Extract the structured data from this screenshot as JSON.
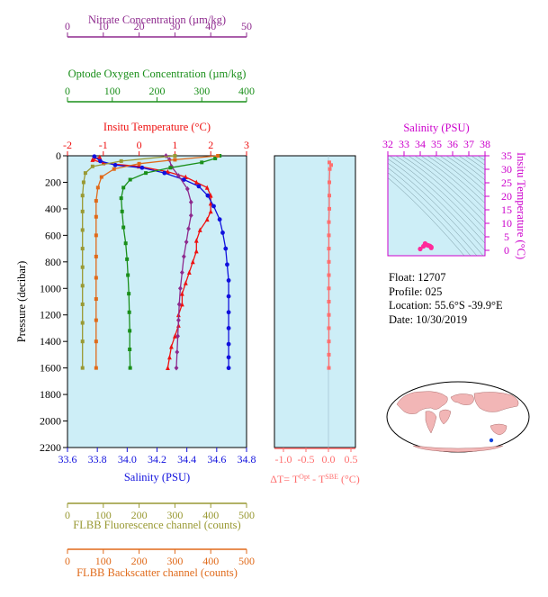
{
  "colors": {
    "panel_bg": "#cdeef7",
    "nitrate": "#8e2a8e",
    "oxygen": "#1a8f1a",
    "temperature": "#ee1111",
    "salinity": "#1111dd",
    "fluorescence": "#999933",
    "backscatter": "#e06a1a",
    "delta_t": "#ff6f6f",
    "ts_axis": "#cc00cc",
    "map_land": "#f2b6b6",
    "map_ocean": "#ffffff",
    "float_marker": "#1144dd"
  },
  "chart_data": [
    {
      "type": "line",
      "title": "",
      "ylabel": "Pressure (decibar)",
      "yticks": [
        "0",
        "200",
        "400",
        "600",
        "800",
        "1000",
        "1200",
        "1400",
        "1600",
        "1800",
        "2000",
        "2200"
      ],
      "ylim": [
        2200,
        0
      ],
      "axes": [
        {
          "key": "nitrate",
          "label": "Nitrate Concentration (µm/kg)",
          "range": [
            0,
            50
          ],
          "ticks": [
            "0",
            "10",
            "20",
            "30",
            "40",
            "50"
          ]
        },
        {
          "key": "oxygen",
          "label": "Optode Oxygen Concentration (µm/kg)",
          "range": [
            0,
            400
          ],
          "ticks": [
            "0",
            "100",
            "200",
            "300",
            "400"
          ]
        },
        {
          "key": "temperature",
          "label": "Insitu Temperature (°C)",
          "range": [
            -2,
            3
          ],
          "ticks": [
            "-2",
            "-1",
            "0",
            "1",
            "2",
            "3"
          ]
        },
        {
          "key": "salinity",
          "label": "Salinity (PSU)",
          "range": [
            33.6,
            34.8
          ],
          "ticks": [
            "33.6",
            "33.8",
            "34.0",
            "34.2",
            "34.4",
            "34.6",
            "34.8"
          ]
        },
        {
          "key": "fluorescence",
          "label": "FLBB Fluorescence channel (counts)",
          "range": [
            0,
            500
          ],
          "ticks": [
            "0",
            "100",
            "200",
            "300",
            "400",
            "500"
          ]
        },
        {
          "key": "backscatter",
          "label": "FLBB Backscatter channel (counts)",
          "range": [
            0,
            500
          ],
          "ticks": [
            "0",
            "100",
            "200",
            "300",
            "400",
            "500"
          ]
        }
      ],
      "series": [
        {
          "key": "temperature",
          "marker": "triangle",
          "points": [
            [
              -1.1,
              10
            ],
            [
              -1.3,
              30
            ],
            [
              -1.0,
              55
            ],
            [
              0.0,
              80
            ],
            [
              0.8,
              120
            ],
            [
              1.3,
              160
            ],
            [
              1.6,
              200
            ],
            [
              1.9,
              240
            ],
            [
              2.0,
              300
            ],
            [
              2.0,
              360
            ],
            [
              2.0,
              420
            ],
            [
              1.9,
              480
            ],
            [
              1.7,
              560
            ],
            [
              1.6,
              640
            ],
            [
              1.6,
              720
            ],
            [
              1.5,
              800
            ],
            [
              1.4,
              880
            ],
            [
              1.3,
              960
            ],
            [
              1.2,
              1040
            ],
            [
              1.2,
              1120
            ],
            [
              1.1,
              1200
            ],
            [
              1.1,
              1280
            ],
            [
              1.0,
              1360
            ],
            [
              0.9,
              1440
            ],
            [
              0.85,
              1520
            ],
            [
              0.8,
              1600
            ]
          ]
        },
        {
          "key": "salinity",
          "marker": "circle",
          "points": [
            [
              33.78,
              5
            ],
            [
              33.82,
              40
            ],
            [
              33.92,
              70
            ],
            [
              34.1,
              90
            ],
            [
              34.25,
              130
            ],
            [
              34.38,
              180
            ],
            [
              34.48,
              230
            ],
            [
              34.54,
              300
            ],
            [
              34.58,
              380
            ],
            [
              34.62,
              480
            ],
            [
              34.64,
              580
            ],
            [
              34.66,
              700
            ],
            [
              34.67,
              820
            ],
            [
              34.68,
              940
            ],
            [
              34.68,
              1060
            ],
            [
              34.68,
              1180
            ],
            [
              34.68,
              1300
            ],
            [
              34.68,
              1420
            ],
            [
              34.68,
              1520
            ],
            [
              34.68,
              1600
            ]
          ]
        },
        {
          "key": "nitrate",
          "marker": "diamond",
          "points": [
            [
              27.5,
              0
            ],
            [
              28.5,
              30
            ],
            [
              29.0,
              80
            ],
            [
              31.0,
              150
            ],
            [
              33.5,
              250
            ],
            [
              34.5,
              350
            ],
            [
              34.5,
              450
            ],
            [
              33.8,
              550
            ],
            [
              33.2,
              650
            ],
            [
              32.5,
              760
            ],
            [
              32.0,
              880
            ],
            [
              31.5,
              1000
            ],
            [
              31.2,
              1120
            ],
            [
              31.0,
              1240
            ],
            [
              30.8,
              1360
            ],
            [
              30.6,
              1480
            ],
            [
              30.4,
              1600
            ]
          ]
        },
        {
          "key": "oxygen",
          "marker": "square",
          "points": [
            [
              340,
              0
            ],
            [
              330,
              20
            ],
            [
              300,
              50
            ],
            [
              230,
              90
            ],
            [
              175,
              130
            ],
            [
              140,
              180
            ],
            [
              125,
              240
            ],
            [
              120,
              320
            ],
            [
              122,
              420
            ],
            [
              125,
              540
            ],
            [
              130,
              660
            ],
            [
              133,
              780
            ],
            [
              135,
              900
            ],
            [
              137,
              1040
            ],
            [
              138,
              1180
            ],
            [
              139,
              1320
            ],
            [
              139,
              1460
            ],
            [
              140,
              1600
            ]
          ]
        },
        {
          "key": "fluorescence",
          "marker": "square",
          "points": [
            [
              300,
              0
            ],
            [
              150,
              40
            ],
            [
              70,
              80
            ],
            [
              50,
              130
            ],
            [
              45,
              200
            ],
            [
              42,
              300
            ],
            [
              42,
              420
            ],
            [
              42,
              560
            ],
            [
              42,
              700
            ],
            [
              42,
              840
            ],
            [
              42,
              980
            ],
            [
              42,
              1120
            ],
            [
              42,
              1260
            ],
            [
              42,
              1400
            ],
            [
              42,
              1600
            ]
          ]
        },
        {
          "key": "backscatter",
          "marker": "square",
          "points": [
            [
              420,
              0
            ],
            [
              300,
              30
            ],
            [
              200,
              60
            ],
            [
              130,
              100
            ],
            [
              95,
              160
            ],
            [
              85,
              240
            ],
            [
              80,
              340
            ],
            [
              80,
              460
            ],
            [
              80,
              600
            ],
            [
              80,
              760
            ],
            [
              80,
              920
            ],
            [
              80,
              1080
            ],
            [
              80,
              1240
            ],
            [
              80,
              1400
            ],
            [
              80,
              1600
            ]
          ]
        }
      ]
    },
    {
      "type": "scatter",
      "xlabel": "ΔT= T",
      "xlabel_sup1": "Opt",
      "xlabel_mid": " - T",
      "xlabel_sup2": "SBE",
      "xlabel_unit": " (°C)",
      "xlim": [
        -1.2,
        0.6
      ],
      "xticks": [
        "-1.0",
        "-0.5",
        "0.0",
        "0.5"
      ],
      "ylim": [
        2200,
        0
      ],
      "points": [
        [
          0.02,
          50
        ],
        [
          0.06,
          70
        ],
        [
          0.03,
          100
        ],
        [
          0.02,
          200
        ],
        [
          0.02,
          300
        ],
        [
          0.02,
          400
        ],
        [
          0.01,
          500
        ],
        [
          0.01,
          600
        ],
        [
          0.01,
          700
        ],
        [
          0.01,
          800
        ],
        [
          0.01,
          900
        ],
        [
          0.01,
          1000
        ],
        [
          0.01,
          1100
        ],
        [
          0.01,
          1200
        ],
        [
          0.01,
          1300
        ],
        [
          0.01,
          1400
        ],
        [
          0.01,
          1500
        ],
        [
          0.01,
          1600
        ]
      ]
    },
    {
      "type": "scatter",
      "xlabel": "Salinity (PSU)",
      "ylabel": "Insitu Temperature (°C)",
      "xlim": [
        32,
        38
      ],
      "ylim": [
        -2,
        35
      ],
      "xticks": [
        "32",
        "33",
        "34",
        "35",
        "36",
        "37",
        "38"
      ],
      "yticks": [
        "0",
        "5",
        "10",
        "15",
        "20",
        "25",
        "30",
        "35"
      ],
      "points": [
        [
          34.2,
          1.5
        ],
        [
          34.4,
          2.0
        ],
        [
          34.5,
          1.8
        ],
        [
          34.6,
          1.6
        ],
        [
          34.68,
          1.2
        ],
        [
          34.68,
          0.9
        ],
        [
          34.3,
          2.5
        ],
        [
          34.0,
          0.5
        ]
      ]
    }
  ],
  "info": {
    "float": "Float:  12707",
    "profile": "Profile:  025",
    "location": "Location:  55.6°S  -39.9°E",
    "date": "Date:  10/30/2019"
  }
}
